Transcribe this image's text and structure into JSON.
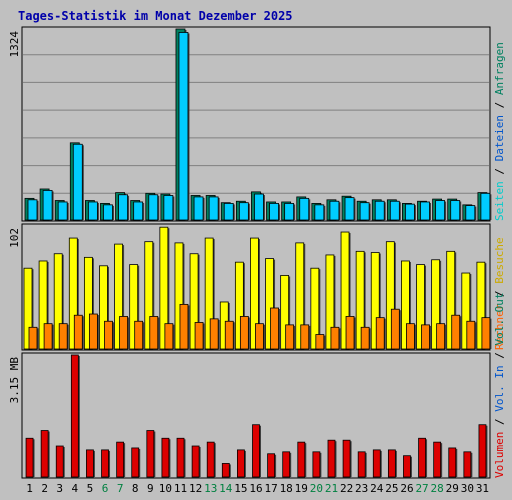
{
  "title": "Tages-Statistik im Monat Dezember 2025",
  "colors": {
    "background": "#c0c0c0",
    "panel_border": "#000000",
    "grid": "#808080",
    "anfragen": "#008060",
    "dateien": "#00ccff",
    "besuche": "#ffff00",
    "rechner": "#ff8000",
    "volumen": "#dd0000",
    "weekday_label": "#000000",
    "weekend_label": "#008040",
    "side_slash": "#000000"
  },
  "side_labels": {
    "top": [
      {
        "text": "Seiten",
        "color": "#00cccc"
      },
      {
        "text": " / ",
        "color": "#000000"
      },
      {
        "text": "Dateien",
        "color": "#0055cc"
      },
      {
        "text": " / ",
        "color": "#000000"
      },
      {
        "text": "Anfragen",
        "color": "#008060"
      }
    ],
    "middle": [
      {
        "text": "Rechner",
        "color": "#ff6000"
      },
      {
        "text": " / ",
        "color": "#000000"
      },
      {
        "text": "Besuche",
        "color": "#ccaa00"
      }
    ],
    "bottom": [
      {
        "text": "Volumen",
        "color": "#dd0000"
      },
      {
        "text": " / ",
        "color": "#000000"
      },
      {
        "text": "Vol. In",
        "color": "#0055cc"
      },
      {
        "text": " / ",
        "color": "#000000"
      },
      {
        "text": "Vol. Out",
        "color": "#008060"
      }
    ]
  },
  "chart_data": [
    {
      "type": "bar",
      "panel": "top",
      "ymax_label": "1324",
      "ylim": [
        0,
        1324
      ],
      "categories": [
        "1",
        "2",
        "3",
        "4",
        "5",
        "6",
        "7",
        "8",
        "9",
        "10",
        "11",
        "12",
        "13",
        "14",
        "15",
        "16",
        "17",
        "18",
        "19",
        "20",
        "21",
        "22",
        "23",
        "24",
        "25",
        "26",
        "27",
        "28",
        "29",
        "30",
        "31"
      ],
      "weekend_days": [
        "6",
        "7",
        "13",
        "14",
        "20",
        "21",
        "27",
        "28"
      ],
      "series": [
        {
          "name": "Anfragen",
          "values": [
            150,
            215,
            135,
            535,
            135,
            115,
            190,
            135,
            185,
            180,
            1324,
            170,
            170,
            120,
            130,
            195,
            125,
            125,
            160,
            115,
            140,
            165,
            130,
            140,
            140,
            115,
            130,
            145,
            145,
            105,
            190
          ]
        },
        {
          "name": "Dateien",
          "values": [
            140,
            205,
            125,
            525,
            125,
            105,
            175,
            125,
            175,
            170,
            1300,
            160,
            160,
            115,
            120,
            180,
            115,
            115,
            150,
            105,
            130,
            155,
            120,
            130,
            130,
            110,
            125,
            135,
            135,
            100,
            185
          ]
        }
      ]
    },
    {
      "type": "bar",
      "panel": "middle",
      "ymax_label": "102",
      "ylim": [
        0,
        102
      ],
      "categories": [
        "1",
        "2",
        "3",
        "4",
        "5",
        "6",
        "7",
        "8",
        "9",
        "10",
        "11",
        "12",
        "13",
        "14",
        "15",
        "16",
        "17",
        "18",
        "19",
        "20",
        "21",
        "22",
        "23",
        "24",
        "25",
        "26",
        "27",
        "28",
        "29",
        "30",
        "31"
      ],
      "series": [
        {
          "name": "Besuche",
          "values": [
            67,
            73,
            79,
            92,
            76,
            69,
            87,
            70,
            89,
            101,
            88,
            79,
            92,
            39,
            72,
            92,
            75,
            61,
            88,
            67,
            78,
            97,
            81,
            80,
            89,
            73,
            70,
            74,
            81,
            63,
            72
          ]
        },
        {
          "name": "Rechner",
          "values": [
            18,
            21,
            21,
            28,
            29,
            23,
            27,
            23,
            27,
            21,
            37,
            22,
            25,
            23,
            27,
            21,
            34,
            20,
            20,
            12,
            18,
            27,
            18,
            26,
            33,
            21,
            20,
            21,
            28,
            23,
            26
          ]
        }
      ]
    },
    {
      "type": "bar",
      "panel": "bottom",
      "ymax_label": "3.15 MB",
      "ylim": [
        0,
        3.15
      ],
      "categories": [
        "1",
        "2",
        "3",
        "4",
        "5",
        "6",
        "7",
        "8",
        "9",
        "10",
        "11",
        "12",
        "13",
        "14",
        "15",
        "16",
        "17",
        "18",
        "19",
        "20",
        "21",
        "22",
        "23",
        "24",
        "25",
        "26",
        "27",
        "28",
        "29",
        "30",
        "31"
      ],
      "series": [
        {
          "name": "Volumen",
          "values": [
            1.0,
            1.2,
            0.8,
            3.15,
            0.7,
            0.7,
            0.9,
            0.75,
            1.2,
            1.0,
            1.0,
            0.8,
            0.9,
            0.35,
            0.7,
            1.35,
            0.6,
            0.65,
            0.9,
            0.65,
            0.95,
            0.95,
            0.65,
            0.7,
            0.7,
            0.55,
            1.0,
            0.9,
            0.75,
            0.65,
            1.35
          ]
        }
      ]
    }
  ]
}
